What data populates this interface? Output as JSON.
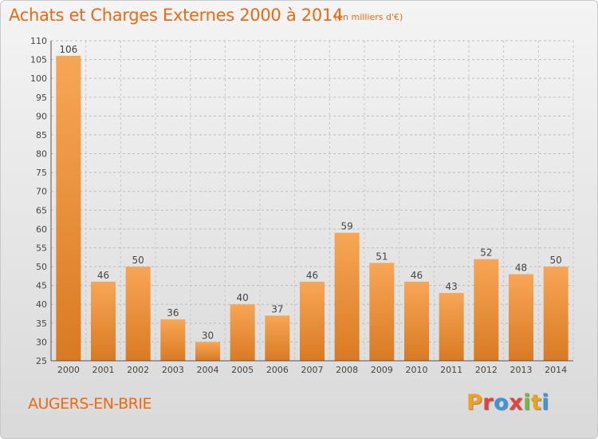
{
  "title": "Achats et Charges Externes 2000 à 2014",
  "subtitle": "(en milliers d'€)",
  "town": "AUGERS-EN-BRIE",
  "logo": {
    "letters": [
      "P",
      "r",
      "o",
      "x",
      "i",
      "t",
      "i"
    ],
    "colors": [
      "#f0a01a",
      "#e8403a",
      "#3a98d8",
      "#e8403a",
      "#6cbd3c",
      "#f0a01a",
      "#3a98d8"
    ]
  },
  "colors": {
    "accent": "#ee6a12",
    "bar_top": "#f7a656",
    "bar_bottom": "#d97a22"
  },
  "chart_data": {
    "type": "bar",
    "categories": [
      "2000",
      "2001",
      "2002",
      "2003",
      "2004",
      "2005",
      "2006",
      "2007",
      "2008",
      "2009",
      "2010",
      "2011",
      "2012",
      "2013",
      "2014"
    ],
    "values": [
      106,
      46,
      50,
      36,
      30,
      40,
      37,
      46,
      59,
      51,
      46,
      43,
      52,
      48,
      50
    ],
    "title": "Achats et Charges Externes 2000 à 2014",
    "subtitle": "(en milliers d'€)",
    "xlabel": "",
    "ylabel": "",
    "ylim": [
      25,
      110
    ],
    "yticks": [
      25,
      30,
      35,
      40,
      45,
      50,
      55,
      60,
      65,
      70,
      75,
      80,
      85,
      90,
      95,
      100,
      105,
      110
    ],
    "grid": true,
    "legend": "none"
  }
}
